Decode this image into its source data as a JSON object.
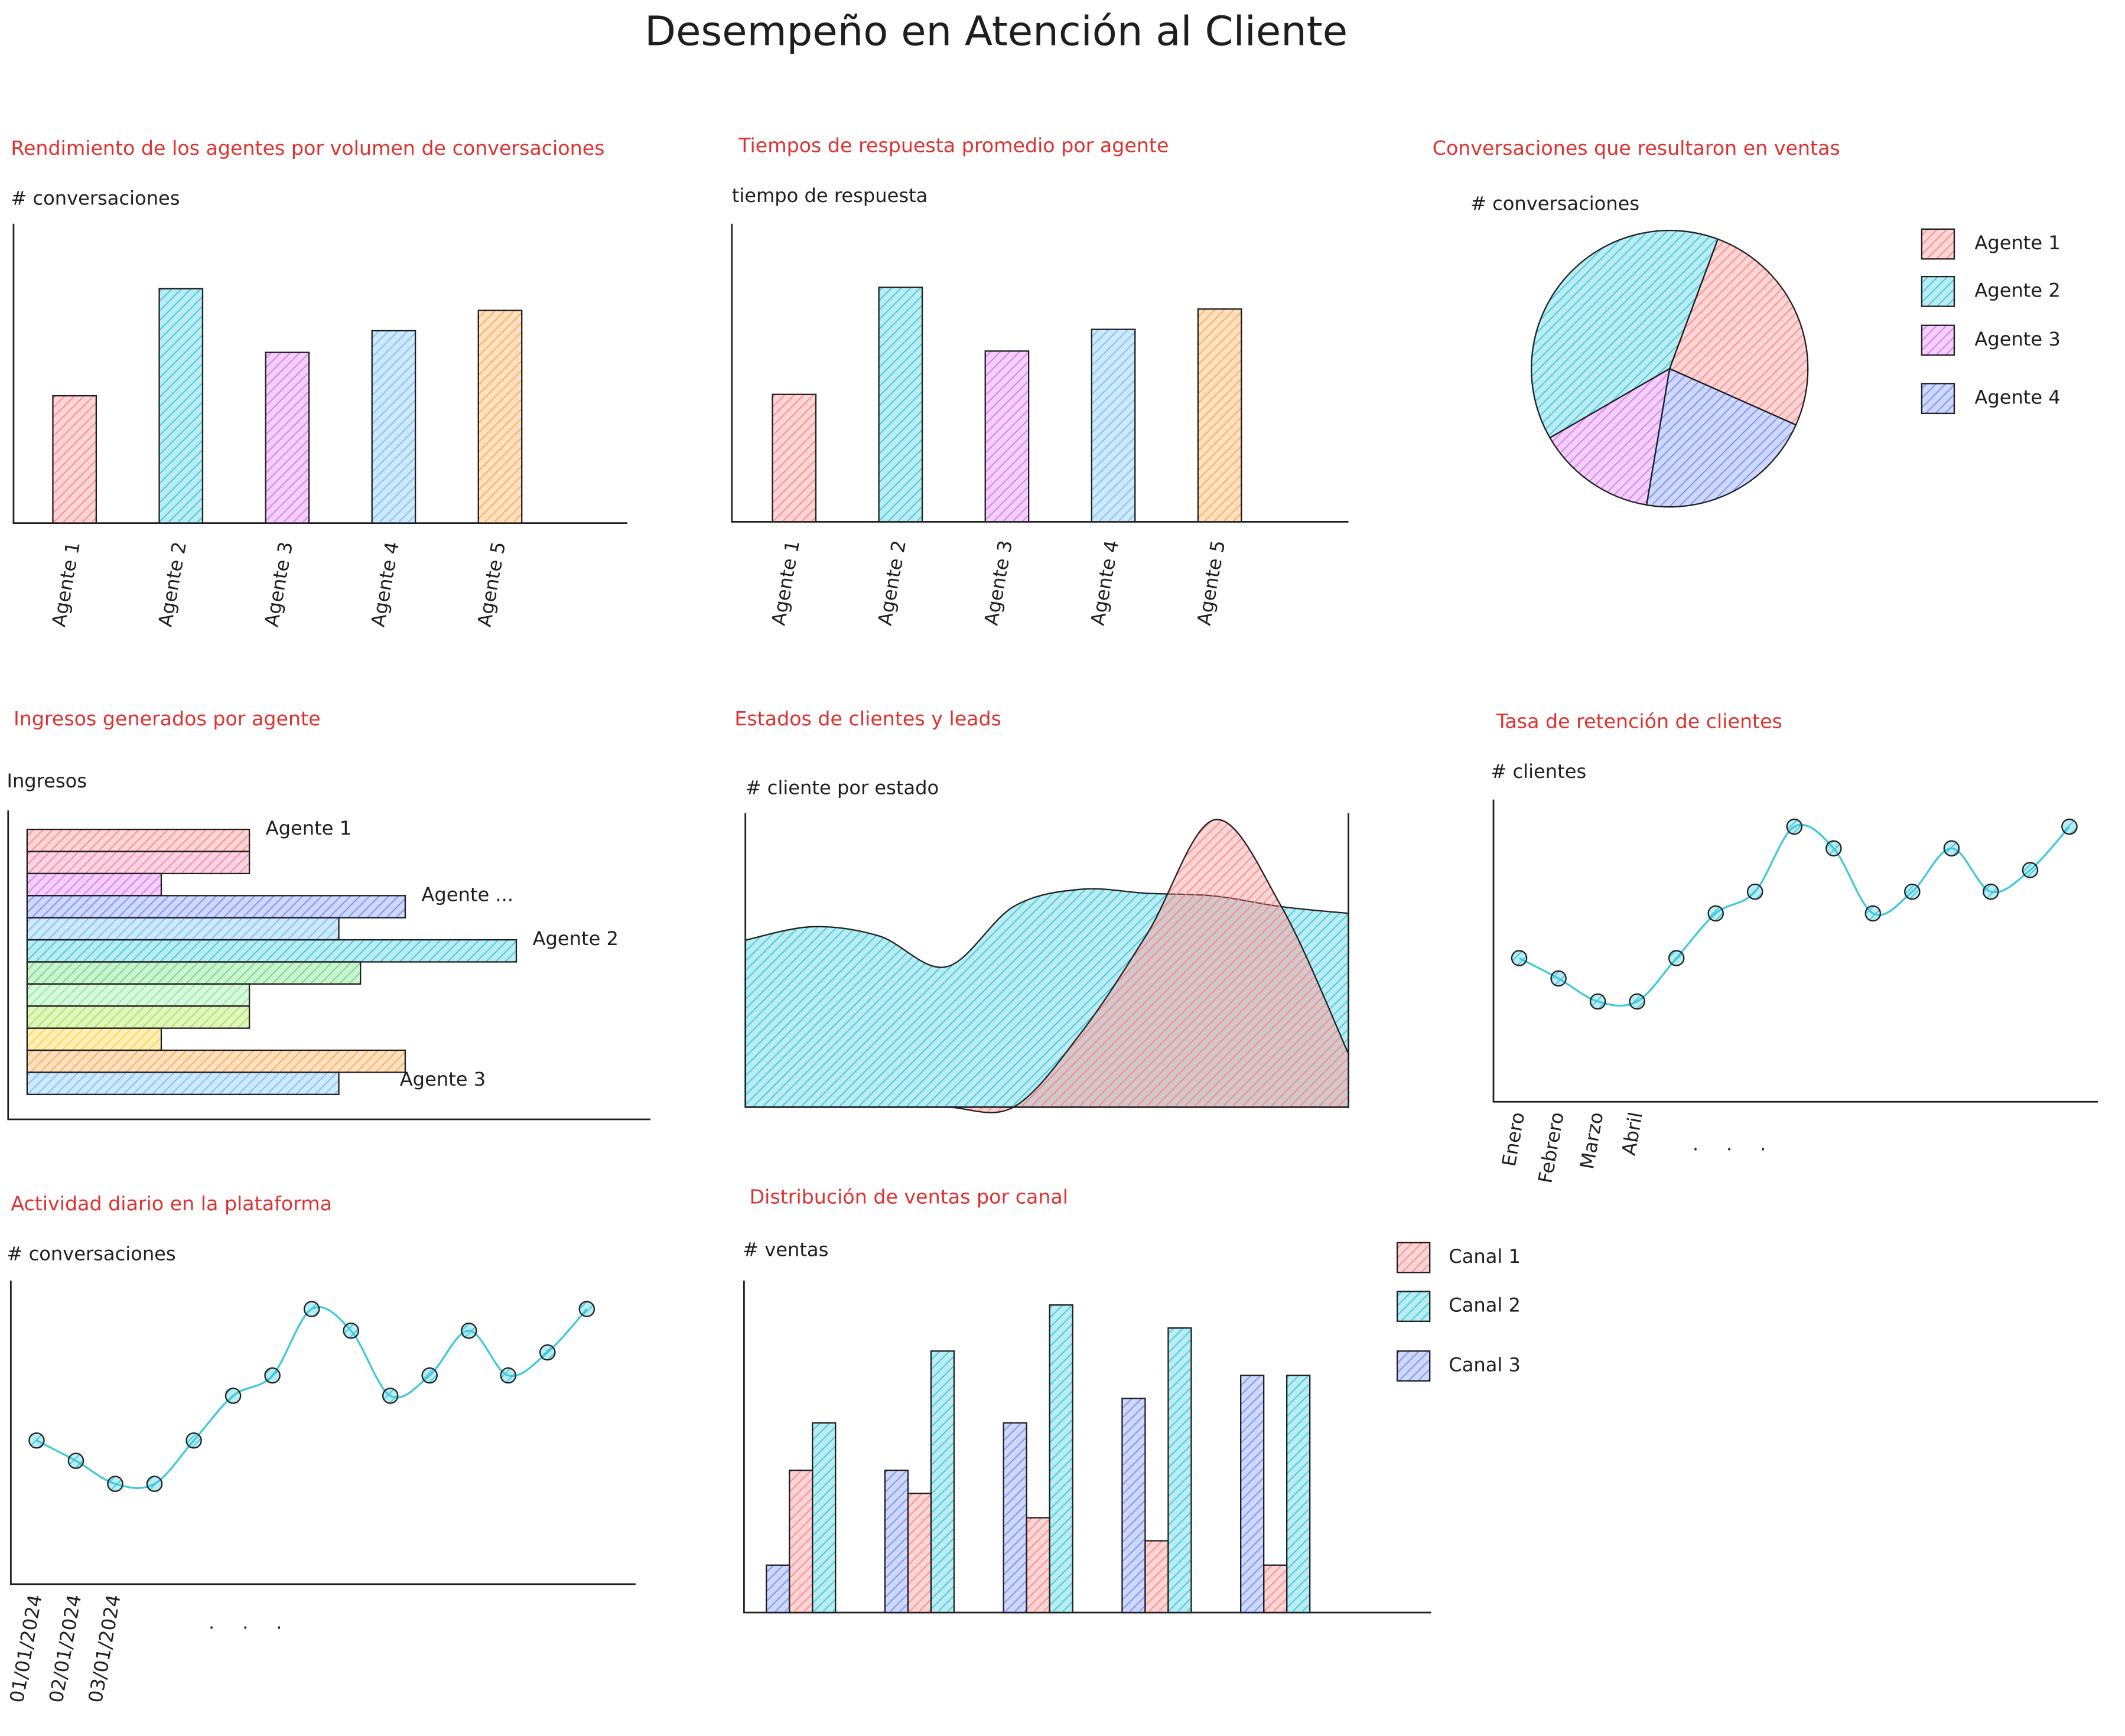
{
  "title": "Desempeño en Atención al Cliente",
  "chart_data": [
    {
      "type": "bar",
      "title": "Rendimiento de los agentes por volumen de conversaciones",
      "y_label": "# conversaciones",
      "categories": [
        "Agente 1",
        "Agente 2",
        "Agente 3",
        "Agente 4",
        "Agente 5"
      ],
      "values": [
        94,
        173,
        126,
        142,
        157
      ],
      "colors": [
        "#ff8787",
        "#3bc9db",
        "#da77f2",
        "#74c0fc",
        "#ffa94d"
      ],
      "ylim": [
        0,
        221
      ]
    },
    {
      "type": "bar",
      "title": "Tiempos de respuesta promedio por agente",
      "y_label": "tiempo de respuesta",
      "categories": [
        "Agente 1",
        "Agente 2",
        "Agente 3",
        "Agente 4",
        "Agente 5"
      ],
      "values": [
        94,
        173,
        126,
        142,
        157
      ],
      "colors": [
        "#ff8787",
        "#3bc9db",
        "#da77f2",
        "#74c0fc",
        "#ffa94d"
      ],
      "ylim": [
        0,
        220
      ]
    },
    {
      "type": "pie",
      "title": "Conversaciones que resultaron en ventas",
      "y_label": "# conversaciones",
      "categories": [
        "Agente 1",
        "Agente 2",
        "Agente 3",
        "Agente 4"
      ],
      "values": [
        26,
        39,
        14,
        21
      ],
      "colors": [
        "#ff8787",
        "#3bc9db",
        "#da77f2",
        "#748ffc"
      ],
      "legend": "right"
    },
    {
      "type": "hbar",
      "title": "Ingresos generados por agente",
      "x_label": "Ingresos",
      "categories": [
        "Agente 1",
        null,
        null,
        "Agente ...",
        null,
        "Agente 2",
        null,
        null,
        null,
        null,
        null,
        "Agente 3"
      ],
      "values": [
        164,
        164,
        99,
        279,
        230,
        361,
        246,
        164,
        164,
        99,
        279,
        230
      ],
      "colors": [
        "#ff8787",
        "#f783ac",
        "#da77f2",
        "#748ffc",
        "#74c0fc",
        "#3bc9db",
        "#69db7c",
        "#8ce99a",
        "#a9e34b",
        "#ffd43b",
        "#ffa94d",
        "#74c0fc"
      ],
      "xlim": [
        0,
        460
      ]
    },
    {
      "type": "area",
      "title": "Estados de clientes y leads",
      "y_label": "# cliente por estado",
      "series": [
        {
          "color": "#3bc9db",
          "values": [
            125,
            135,
            128,
            105,
            150,
            163,
            160,
            158,
            150,
            145
          ]
        },
        {
          "color": "#ff8787",
          "values": [
            0,
            0,
            0,
            0,
            0,
            55,
            130,
            215,
            150,
            40
          ]
        }
      ],
      "ylim": [
        0,
        220
      ]
    },
    {
      "type": "line",
      "title": "Tasa de retención de clientes",
      "y_label": "# clientes",
      "categories": [
        "Enero",
        "Febrero",
        "Marzo",
        "Abril",
        null,
        null,
        null,
        null,
        null,
        null,
        null,
        null,
        null,
        null,
        null
      ],
      "values": [
        106,
        91,
        74,
        74,
        106,
        139,
        155,
        203,
        187,
        139,
        155,
        187,
        155,
        171,
        203
      ],
      "color": "#3bc9db",
      "ylim": [
        0,
        223
      ],
      "x_more": ". . ."
    },
    {
      "type": "line",
      "title": "Actividad diario en la plataforma",
      "y_label": "# conversaciones",
      "categories": [
        "01/01/2024",
        "02/01/2024",
        "03/01/2024",
        null,
        null,
        null,
        null,
        null,
        null,
        null,
        null,
        null,
        null,
        null,
        null
      ],
      "values": [
        106,
        91,
        74,
        74,
        106,
        139,
        154,
        203,
        187,
        139,
        154,
        187,
        154,
        171,
        203
      ],
      "color": "#3bc9db",
      "ylim": [
        0,
        224
      ],
      "x_more": ". . ."
    },
    {
      "type": "grouped_bar",
      "title": "Distribución de ventas por canal",
      "y_label": "# ventas",
      "categories": [
        null,
        null,
        null,
        null,
        null
      ],
      "series": [
        {
          "name": "Canal 1",
          "color": "#ff8787",
          "values": [
            105,
            88,
            70,
            53,
            35
          ]
        },
        {
          "name": "Canal 2",
          "color": "#3bc9db",
          "values": [
            140,
            193,
            227,
            210,
            175
          ]
        },
        {
          "name": "Canal 3",
          "color": "#748ffc",
          "values": [
            35,
            105,
            140,
            158,
            175
          ]
        }
      ],
      "ylim": [
        0,
        245
      ],
      "legend": "right"
    }
  ]
}
